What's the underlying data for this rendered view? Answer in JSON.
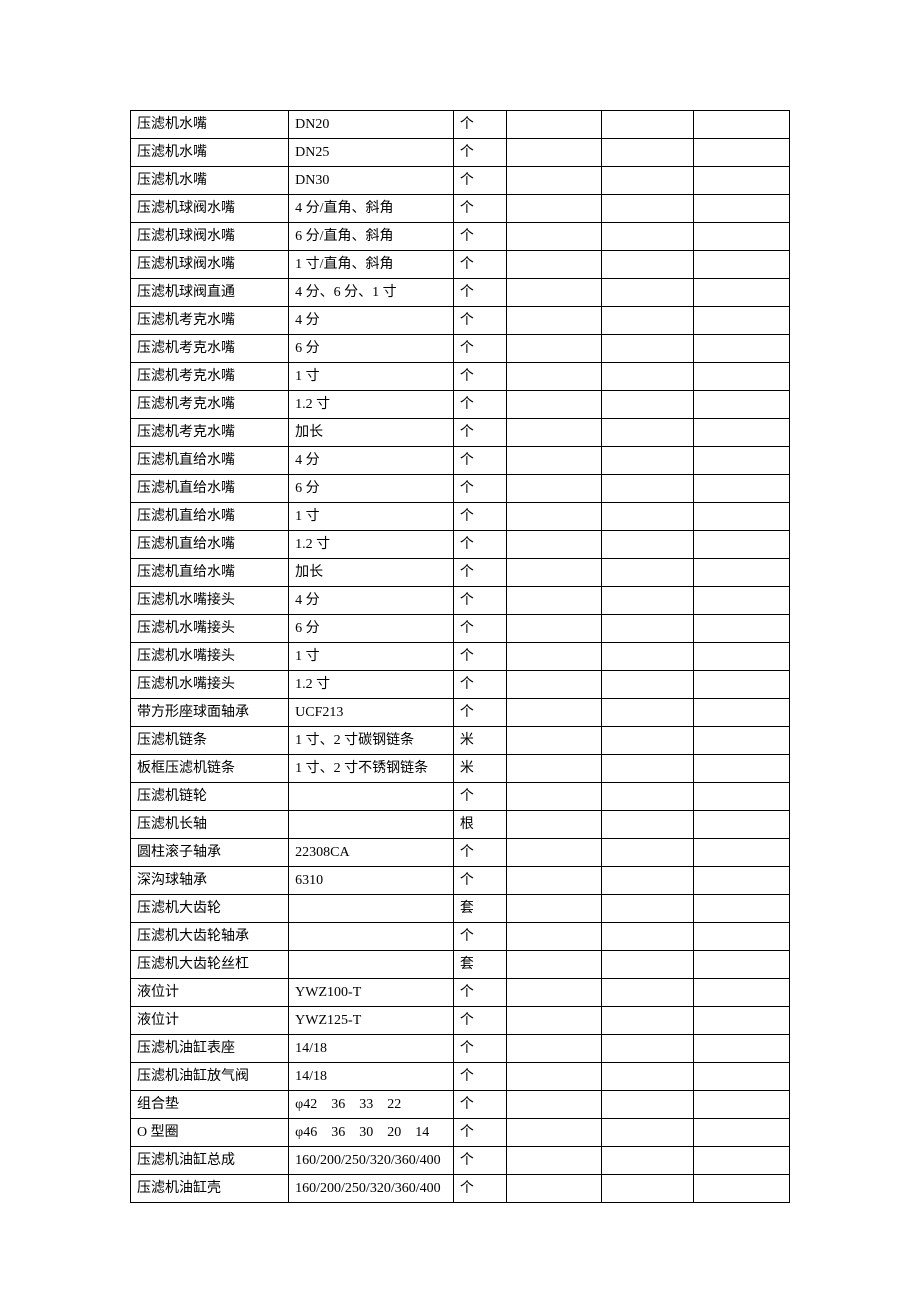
{
  "table": {
    "columns": [
      {
        "width": "24%"
      },
      {
        "width": "25%"
      },
      {
        "width": "8%"
      },
      {
        "width": "14.5%"
      },
      {
        "width": "14%"
      },
      {
        "width": "14.5%"
      }
    ],
    "rows": [
      [
        "压滤机水嘴",
        "DN20",
        "个",
        "",
        "",
        ""
      ],
      [
        "压滤机水嘴",
        "DN25",
        "个",
        "",
        "",
        ""
      ],
      [
        "压滤机水嘴",
        "DN30",
        "个",
        "",
        "",
        ""
      ],
      [
        "压滤机球阀水嘴",
        "4 分/直角、斜角",
        "个",
        "",
        "",
        ""
      ],
      [
        "压滤机球阀水嘴",
        "6 分/直角、斜角",
        "个",
        "",
        "",
        ""
      ],
      [
        "压滤机球阀水嘴",
        "1 寸/直角、斜角",
        "个",
        "",
        "",
        ""
      ],
      [
        "压滤机球阀直通",
        "4 分、6 分、1 寸",
        "个",
        "",
        "",
        ""
      ],
      [
        "压滤机考克水嘴",
        "4 分",
        "个",
        "",
        "",
        ""
      ],
      [
        "压滤机考克水嘴",
        "6 分",
        "个",
        "",
        "",
        ""
      ],
      [
        "压滤机考克水嘴",
        "1 寸",
        "个",
        "",
        "",
        ""
      ],
      [
        "压滤机考克水嘴",
        "1.2 寸",
        "个",
        "",
        "",
        ""
      ],
      [
        "压滤机考克水嘴",
        "加长",
        "个",
        "",
        "",
        ""
      ],
      [
        "压滤机直给水嘴",
        "4 分",
        "个",
        "",
        "",
        ""
      ],
      [
        "压滤机直给水嘴",
        "6 分",
        "个",
        "",
        "",
        ""
      ],
      [
        "压滤机直给水嘴",
        "1 寸",
        "个",
        "",
        "",
        ""
      ],
      [
        "压滤机直给水嘴",
        "1.2 寸",
        "个",
        "",
        "",
        ""
      ],
      [
        "压滤机直给水嘴",
        "加长",
        "个",
        "",
        "",
        ""
      ],
      [
        "压滤机水嘴接头",
        "4 分",
        "个",
        "",
        "",
        ""
      ],
      [
        "压滤机水嘴接头",
        "6 分",
        "个",
        "",
        "",
        ""
      ],
      [
        "压滤机水嘴接头",
        "1 寸",
        "个",
        "",
        "",
        ""
      ],
      [
        "压滤机水嘴接头",
        "1.2 寸",
        "个",
        "",
        "",
        ""
      ],
      [
        "带方形座球面轴承",
        "UCF213",
        "个",
        "",
        "",
        ""
      ],
      [
        "压滤机链条",
        "1 寸、2 寸碳钢链条",
        "米",
        "",
        "",
        ""
      ],
      [
        "板框压滤机链条",
        "1 寸、2 寸不锈钢链条",
        "米",
        "",
        "",
        ""
      ],
      [
        "压滤机链轮",
        "",
        "个",
        "",
        "",
        ""
      ],
      [
        "压滤机长轴",
        "",
        "根",
        "",
        "",
        ""
      ],
      [
        "圆柱滚子轴承",
        "22308CA",
        "个",
        "",
        "",
        ""
      ],
      [
        "深沟球轴承",
        "6310",
        "个",
        "",
        "",
        ""
      ],
      [
        "压滤机大齿轮",
        "",
        "套",
        "",
        "",
        ""
      ],
      [
        "压滤机大齿轮轴承",
        "",
        "个",
        "",
        "",
        ""
      ],
      [
        "压滤机大齿轮丝杠",
        "",
        "套",
        "",
        "",
        ""
      ],
      [
        "液位计",
        "YWZ100-T",
        "个",
        "",
        "",
        ""
      ],
      [
        "液位计",
        "YWZ125-T",
        "个",
        "",
        "",
        ""
      ],
      [
        "压滤机油缸表座",
        "14/18",
        "个",
        "",
        "",
        ""
      ],
      [
        "压滤机油缸放气阀",
        "14/18",
        "个",
        "",
        "",
        ""
      ],
      [
        "组合垫",
        "φ42　36　33　22",
        "个",
        "",
        "",
        ""
      ],
      [
        "O 型圈",
        "φ46　36　30　20　14",
        "个",
        "",
        "",
        ""
      ],
      [
        "压滤机油缸总成",
        "160/200/250/320/360/400",
        "个",
        "",
        "",
        ""
      ],
      [
        "压滤机油缸壳",
        "160/200/250/320/360/400",
        "个",
        "",
        "",
        ""
      ]
    ],
    "border_color": "#000000",
    "background_color": "#ffffff",
    "font_size": 14,
    "font_family": "SimSun"
  }
}
